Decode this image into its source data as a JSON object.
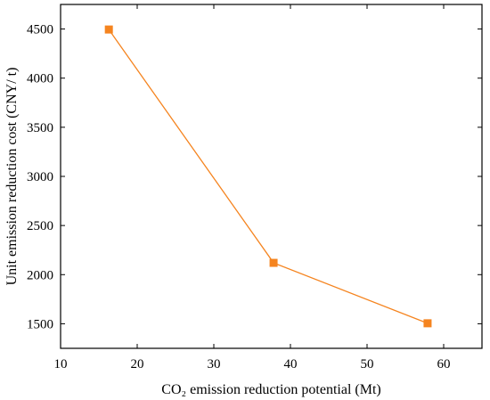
{
  "chart_data": {
    "type": "line",
    "title": "",
    "xlabel": "CO₂ emission reduction potential (Mt)",
    "ylabel": "Unit emission reduction cost (CNY/ t)",
    "xlim": [
      10,
      65
    ],
    "ylim": [
      1250,
      4750
    ],
    "xticks": [
      10,
      20,
      30,
      40,
      50,
      60
    ],
    "yticks": [
      1500,
      2000,
      2500,
      3000,
      3500,
      4000,
      4500
    ],
    "grid": false,
    "series": [
      {
        "x": [
          16.3,
          37.8,
          57.9
        ],
        "y": [
          4495,
          2120,
          1505
        ],
        "color": "#F5841F",
        "marker": "square"
      }
    ]
  }
}
